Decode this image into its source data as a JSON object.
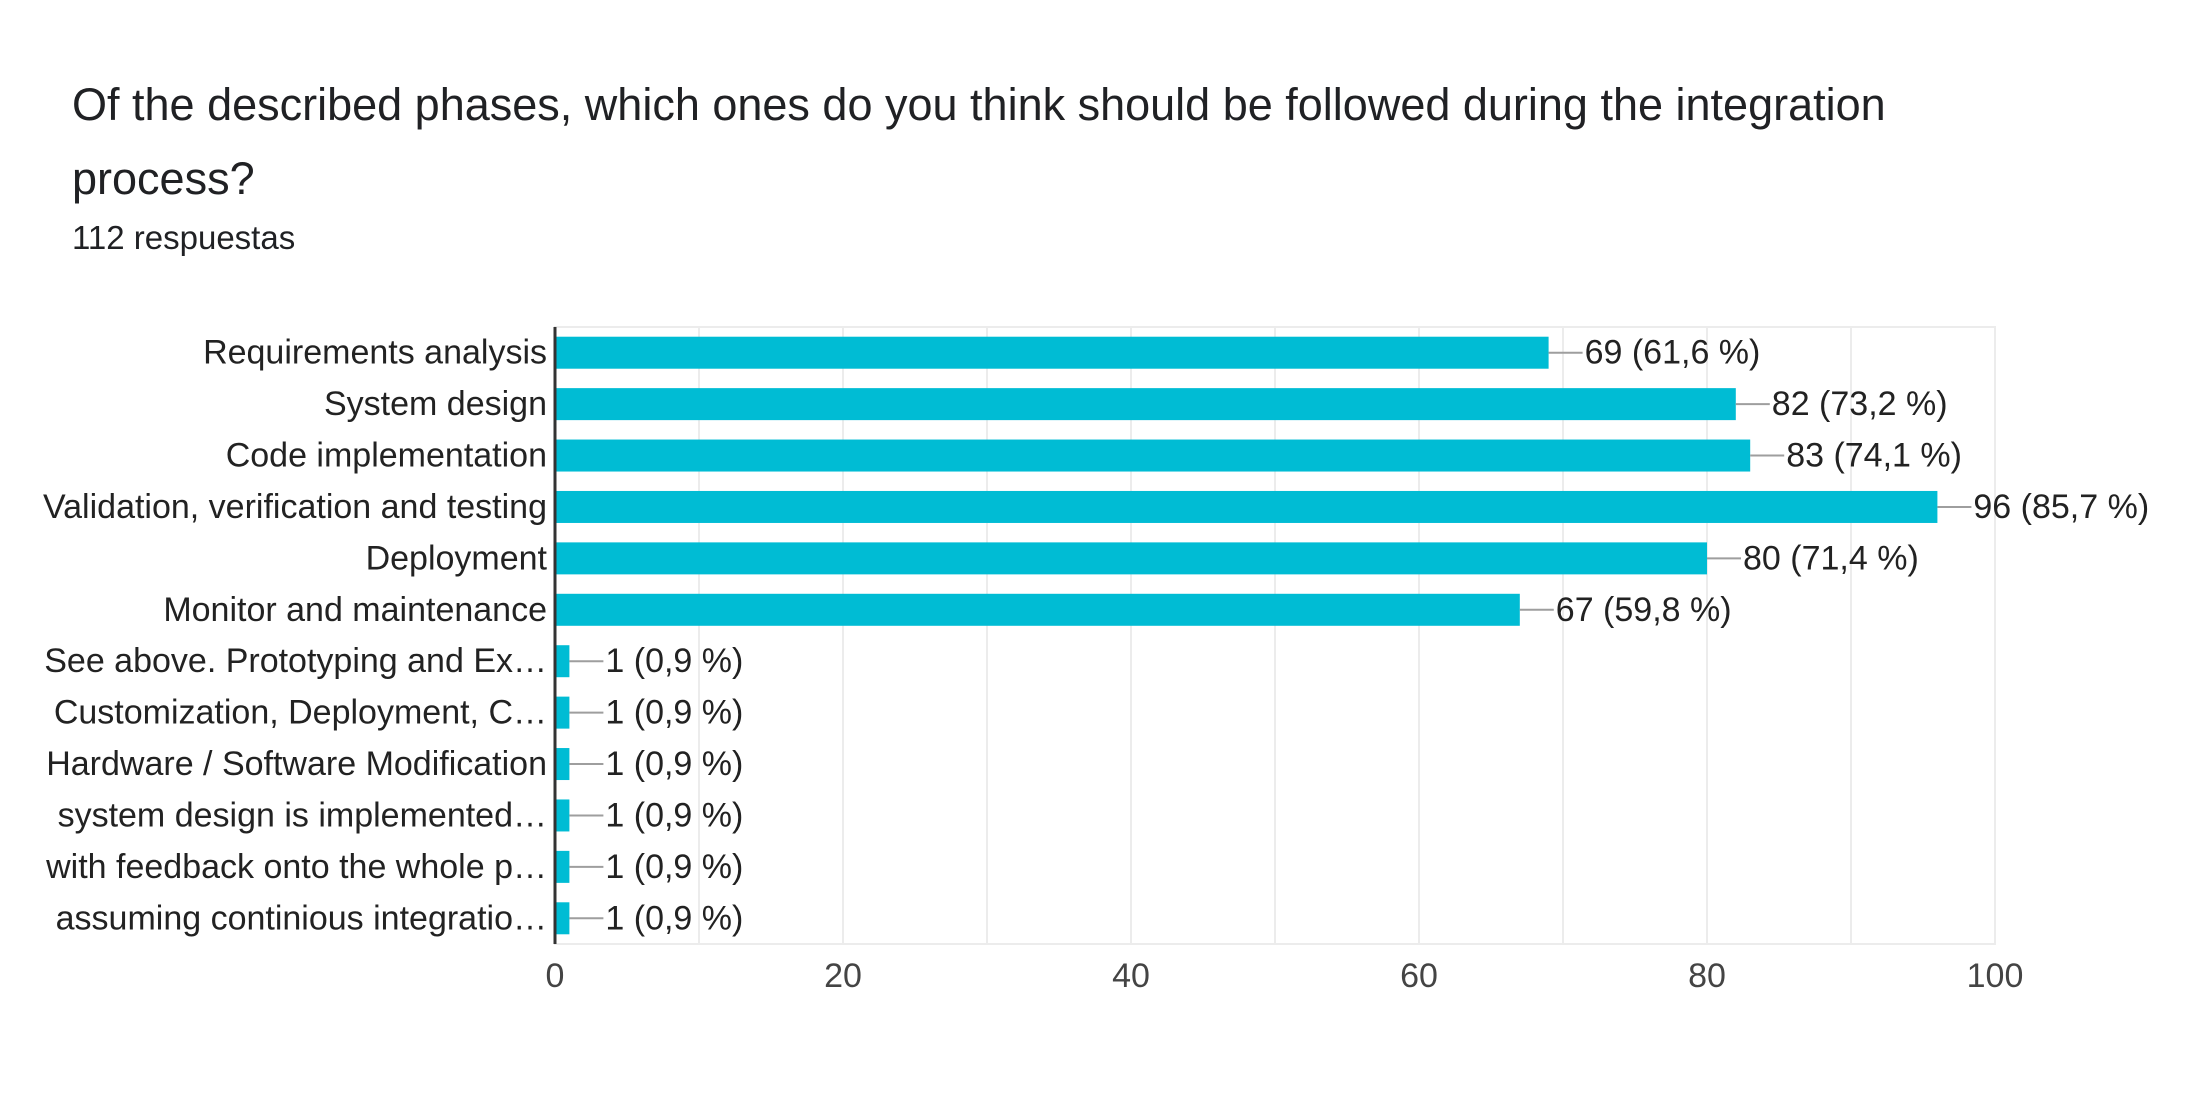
{
  "header": {
    "question": "Of the described phases, which ones do you think should be followed during the integration process?",
    "responses": "112 respuestas"
  },
  "colors": {
    "bar": "#00bcd4",
    "grid": "#ececec",
    "axis": "#333333",
    "leader": "#9e9e9e",
    "text": "#222222"
  },
  "chart_data": {
    "type": "bar",
    "orientation": "horizontal",
    "categories": [
      "Requirements analysis",
      "System design",
      "Code implementation",
      "Validation, verification and testing",
      "Deployment",
      "Monitor and maintenance",
      "See above. Prototyping and Ex…",
      "Customization, Deployment, C…",
      "Hardware / Software Modification",
      "system design is implemented…",
      "with feedback onto the whole p…",
      "assuming continious integratio…"
    ],
    "values": [
      69,
      82,
      83,
      96,
      80,
      67,
      1,
      1,
      1,
      1,
      1,
      1
    ],
    "data_labels": [
      "69 (61,6 %)",
      "82 (73,2 %)",
      "83 (74,1 %)",
      "96 (85,7 %)",
      "80 (71,4 %)",
      "67 (59,8 %)",
      "1 (0,9 %)",
      "1 (0,9 %)",
      "1 (0,9 %)",
      "1 (0,9 %)",
      "1 (0,9 %)",
      "1 (0,9 %)"
    ],
    "xlim": [
      0,
      100
    ],
    "x_ticks": [
      0,
      20,
      40,
      60,
      80,
      100
    ],
    "grid": true
  }
}
